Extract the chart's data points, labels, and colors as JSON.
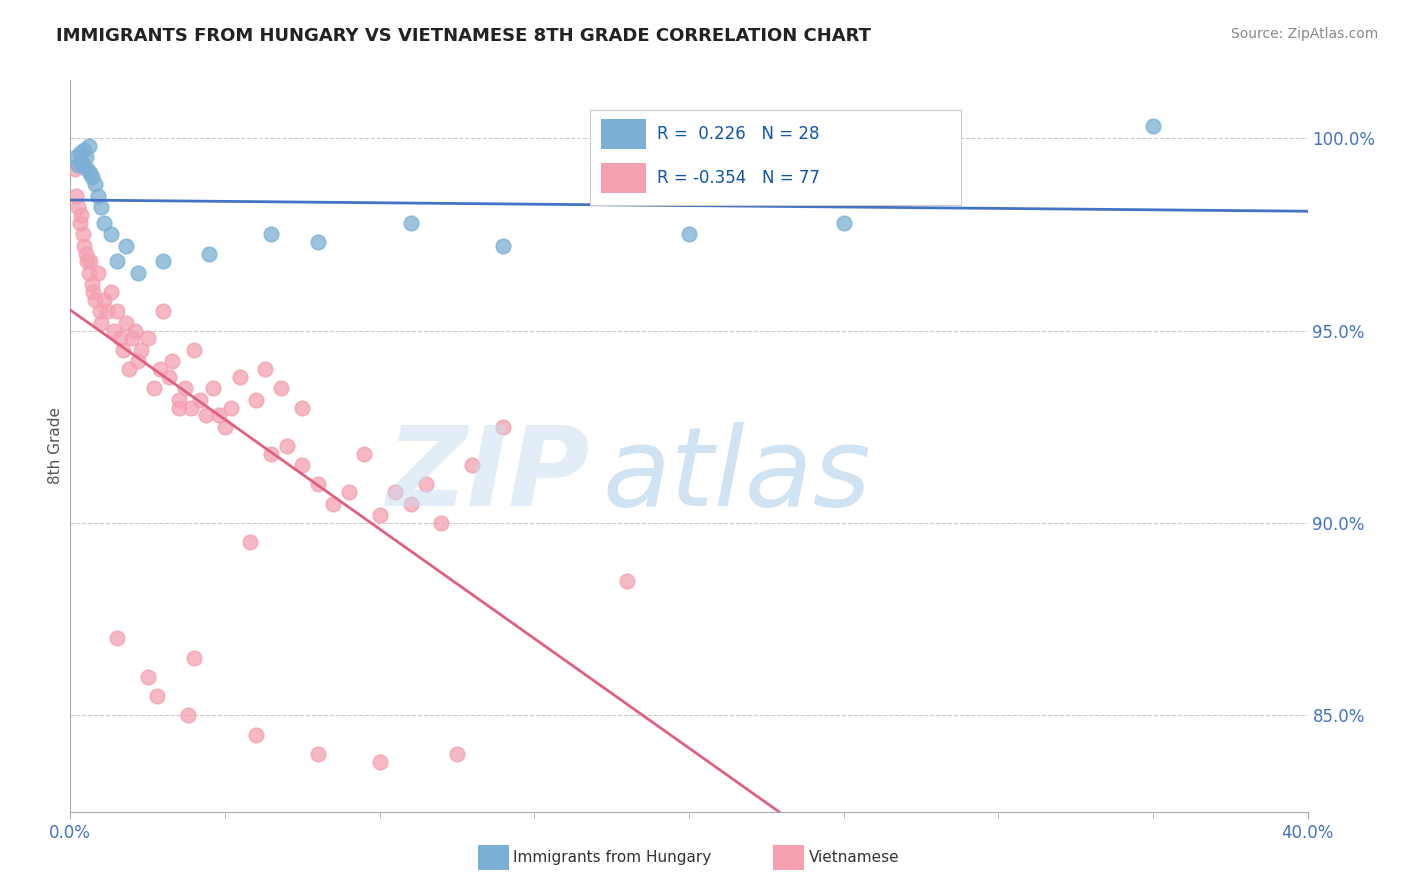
{
  "title": "IMMIGRANTS FROM HUNGARY VS VIETNAMESE 8TH GRADE CORRELATION CHART",
  "source": "Source: ZipAtlas.com",
  "ylabel": "8th Grade",
  "xlim": [
    0.0,
    40.0
  ],
  "ylim": [
    82.5,
    101.5
  ],
  "r_hungary": 0.226,
  "n_hungary": 28,
  "r_vietnamese": -0.354,
  "n_vietnamese": 77,
  "color_hungary": "#7BAFD4",
  "color_vietnamese": "#F4A0B0",
  "color_hungary_line": "#4472C4",
  "color_vietnamese_line": "#E06080",
  "watermark_zip": "ZIP",
  "watermark_atlas": "atlas",
  "watermark_color_zip": "#C8DCF0",
  "watermark_color_atlas": "#A0C8E8",
  "legend_label_hungary": "Immigrants from Hungary",
  "legend_label_vietnamese": "Vietnamese",
  "hungary_scatter_x": [
    0.2,
    0.3,
    0.35,
    0.4,
    0.45,
    0.5,
    0.55,
    0.6,
    0.65,
    0.7,
    0.8,
    0.9,
    1.0,
    1.1,
    1.3,
    1.5,
    1.8,
    2.2,
    3.0,
    4.5,
    6.5,
    8.0,
    11.0,
    14.0,
    20.0,
    25.0,
    35.0,
    0.25
  ],
  "hungary_scatter_y": [
    99.5,
    99.6,
    99.4,
    99.3,
    99.7,
    99.5,
    99.2,
    99.8,
    99.1,
    99.0,
    98.8,
    98.5,
    98.2,
    97.8,
    97.5,
    96.8,
    97.2,
    96.5,
    96.8,
    97.0,
    97.5,
    97.3,
    97.8,
    97.2,
    97.5,
    97.8,
    100.3,
    99.3
  ],
  "vietnamese_scatter_x": [
    0.15,
    0.2,
    0.25,
    0.3,
    0.35,
    0.4,
    0.45,
    0.5,
    0.55,
    0.6,
    0.65,
    0.7,
    0.75,
    0.8,
    0.9,
    0.95,
    1.0,
    1.1,
    1.2,
    1.3,
    1.4,
    1.5,
    1.6,
    1.7,
    1.8,
    1.9,
    2.0,
    2.1,
    2.2,
    2.3,
    2.5,
    2.7,
    2.9,
    3.0,
    3.2,
    3.3,
    3.5,
    3.7,
    3.9,
    4.0,
    4.2,
    4.4,
    4.6,
    5.0,
    5.2,
    5.5,
    6.0,
    6.3,
    6.8,
    7.0,
    7.5,
    8.0,
    8.5,
    9.5,
    10.0,
    10.5,
    11.0,
    11.5,
    12.0,
    13.0,
    14.0,
    18.0,
    3.5,
    4.8,
    6.5,
    9.0,
    7.5,
    5.8,
    2.8,
    4.0,
    1.5,
    2.5,
    3.8,
    6.0,
    8.0,
    10.0,
    12.5
  ],
  "vietnamese_scatter_y": [
    99.2,
    98.5,
    98.2,
    97.8,
    98.0,
    97.5,
    97.2,
    97.0,
    96.8,
    96.5,
    96.8,
    96.2,
    96.0,
    95.8,
    96.5,
    95.5,
    95.2,
    95.8,
    95.5,
    96.0,
    95.0,
    95.5,
    94.8,
    94.5,
    95.2,
    94.0,
    94.8,
    95.0,
    94.2,
    94.5,
    94.8,
    93.5,
    94.0,
    95.5,
    93.8,
    94.2,
    93.2,
    93.5,
    93.0,
    94.5,
    93.2,
    92.8,
    93.5,
    92.5,
    93.0,
    93.8,
    93.2,
    94.0,
    93.5,
    92.0,
    91.5,
    91.0,
    90.5,
    91.8,
    90.2,
    90.8,
    90.5,
    91.0,
    90.0,
    91.5,
    92.5,
    88.5,
    93.0,
    92.8,
    91.8,
    90.8,
    93.0,
    89.5,
    85.5,
    86.5,
    87.0,
    86.0,
    85.0,
    84.5,
    84.0,
    83.8,
    84.0
  ],
  "y_tick_positions": [
    85.0,
    90.0,
    95.0,
    100.0
  ],
  "y_tick_labels": [
    "85.0%",
    "90.0%",
    "95.0%",
    "100.0%"
  ],
  "vie_solid_end_x": 28.0,
  "hungary_trend_x_start": 0.0,
  "hungary_trend_x_end": 40.0,
  "vie_trend_x_start": 0.0,
  "vie_trend_x_end": 40.0
}
